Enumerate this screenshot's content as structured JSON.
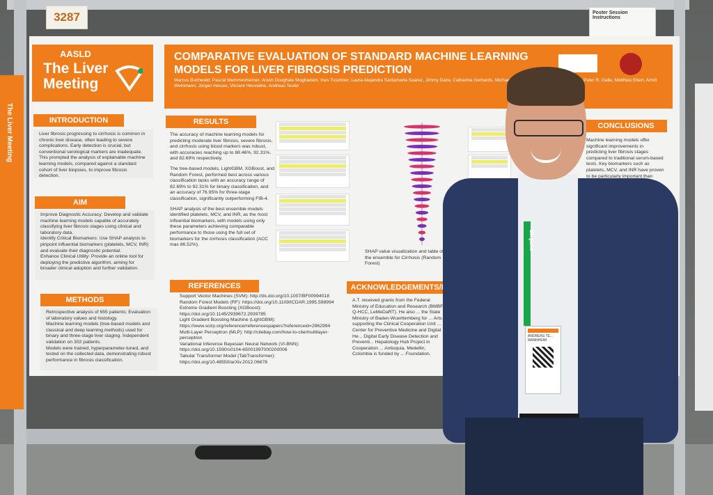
{
  "scene": {
    "booth_number": "3287",
    "instructions_title": "Poster Session Instructions"
  },
  "poster": {
    "logo": {
      "org": "AASLD",
      "meeting": "The Liver Meeting"
    },
    "title": "COMPARATIVE EVALUATION OF STANDARD MACHINE LEARNING MODELS FOR LIVER FIBROSIS PREDICTION",
    "authors": "Marcus Buchwald, Pascal Memmesheimer, Arash Dooghale Moghadam, Ines Tuschner, Laura Alejandra Santamaria Suarez, Jimmy Daza, Catharina Gerhards, Michael Neumaier, Christoph Brochhausen, Peter R. Galle, Matthias Ebert, Arndt Weinmann, Jürgen Hesser, Vincent Heuveline, Andreas Teufel",
    "sections": {
      "introduction": {
        "heading": "INTRODUCTION",
        "text": "Liver fibrosis progressing to cirrhosis is common in chronic liver disease, often leading to severe complications. Early detection is crucial, but conventional serological markers are inadequate. This prompted the analysis of explainable machine learning models, compared against a standard cohort of liver biopsies, to improve fibrosis detection."
      },
      "aim": {
        "heading": "AIM",
        "items": [
          "Improve Diagnostic Accuracy: Develop and validate machine learning models capable of accurately classifying liver fibrosis stages using clinical and laboratory data.",
          "Identify Critical Biomarkers: Use SHAP analysis to pinpoint influential biomarkers (platelets, MCV, INR) and evaluate their diagnostic potential.",
          "Enhance Clinical Utility: Provide an online tool for deploying the predictive algorithm, aiming for broader clinical adoption and further validation."
        ]
      },
      "methods": {
        "heading": "METHODS",
        "items": [
          "Retrospective analysis of 655 patients; Evaluation of laboratory values and histology.",
          "Machine learning models (tree-based models and classical and deep learning methods) used for binary and three-stage liver staging. Independent validation on 302 patients.",
          "Models were trained, hyperparameter-tuned, and tested on the collected data, demonstrating robust performance in fibrosis classification."
        ]
      },
      "results": {
        "heading": "RESULTS",
        "items": [
          "The accuracy of machine learning models for predicting moderate liver fibrosis, severe fibrosis, and cirrhosis using blood markers was robust, with accuracies reaching up to 88.46%, 92.31%, and 82.69% respectively.",
          "The tree-based models, LightGBM, XGBoost, and Random Forest, performed best across various classification tasks with an accuracy range of 82.69% to 92.31% for binary classification, and an accuracy of 76.95% for three-stage classification, significantly outperforming FIB-4.",
          "SHAP analysis of the best ensemble models identified platelets, MCV, and INR, as the most influential biomarkers, with models using only these parameters achieving comparable performance to those using the full set of biomarkers for the cirrhosis classification (ACC max 86.52%)."
        ],
        "shap_caption": "SHAP value visualization and table of the ensemble for Cirrhosis (Random Forest)"
      },
      "conclusions": {
        "heading": "CONCLUSIONS",
        "text": "Machine learning models offer significant improvements in predicting liver fibrosis stages compared to traditional serum-based tests. Key biomarkers such as platelets, MCV, and INR have proven to be particularly important than previously"
      },
      "references": {
        "heading": "REFERENCES",
        "items": [
          "Support Vector Machines (SVM): http://dx.doi.org/10.1007/BF00994018",
          "Random Forest Models (RF): https://doi.org/10.1109/ICDAR.1995.598994",
          "Extreme Gradient Boosting (XGBoost): https://doi.org/10.1145/2939672.2939785",
          "Light Gradient Boosting Machine (LightGBM): https://www.scirp.org/reference/referencespapers?referenceid=2962994",
          "Multi-Layer Perceptron (MLP): http://citebay.com/how-to-cite/multilayer-perceptron",
          "Variational Inference Bayesian Neural Network (VI-BNN): https://doi.org/10.1590/s0104-65001997000200006",
          "Tabular Transformer Model (TabTransformer): https://doi.org/10.48550/arXiv.2012.06678"
        ]
      },
      "acknowledgements": {
        "heading": "ACKNOWLEDGEMENTS/F",
        "text": "A.T. received grants from the Federal Ministry of Education and Research (BMBF, Q-HCC, LeMeDaRT). He also ... the State Ministry of Baden-Wuerttemberg for ... Arts supporting the Clinical Cooperation Unit ... Center for Preventive Medicine and Digital He... Digital Early Disease Detection and Preventi... Hepatology Hub Project in Cooperation ... Antioquia, Medellin, Colombia is funded by ... Foundation."
      }
    }
  },
  "badge": {
    "lanyard_text": "Bergamo",
    "name": "ANDREAS TE...",
    "city": "MANNHEIM"
  },
  "colors": {
    "accent": "#ef7d1c",
    "suit": "#2a3a63",
    "lanyard": "#1aa54a"
  }
}
